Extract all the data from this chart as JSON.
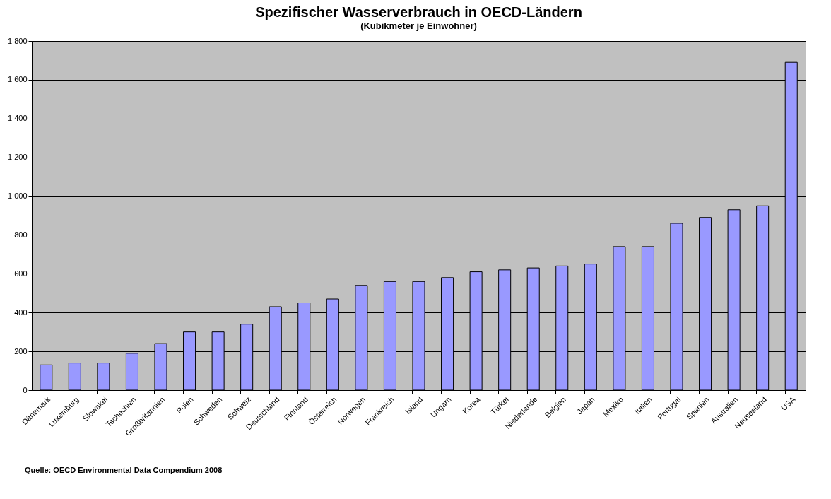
{
  "chart_data": {
    "type": "bar",
    "title": "Spezifischer Wasserverbrauch in OECD-Ländern",
    "subtitle": "(Kubikmeter je Einwohner)",
    "categories": [
      "Dänemark",
      "Luxemburg",
      "Slowakei",
      "Tschechien",
      "Großbritannien",
      "Polen",
      "Schweden",
      "Schweiz",
      "Deutschland",
      "Finnland",
      "Österreich",
      "Norwegen",
      "Frankreich",
      "Island",
      "Ungarn",
      "Korea",
      "Türkei",
      "Niederlande",
      "Belgien",
      "Japan",
      "Mexiko",
      "Italien",
      "Portugal",
      "Spanien",
      "Australien",
      "Neuseeland",
      "USA"
    ],
    "values": [
      130,
      140,
      140,
      190,
      240,
      300,
      300,
      340,
      430,
      450,
      470,
      540,
      560,
      560,
      580,
      610,
      620,
      630,
      640,
      650,
      740,
      740,
      860,
      890,
      930,
      950,
      1690
    ],
    "color": "#9999ff",
    "ylim": [
      0,
      1800
    ],
    "yticks": [
      0,
      200,
      400,
      600,
      800,
      {
        "value": 1000,
        "label": "1 000"
      },
      {
        "value": 1200,
        "label": "1 200"
      },
      {
        "value": 1400,
        "label": "1 400"
      },
      {
        "value": 1600,
        "label": "1 600"
      },
      {
        "value": 1800,
        "label": "1 800"
      }
    ],
    "grid": "y",
    "annotations": [
      "Quelle: OECD Environmental Data Compendium 2008"
    ]
  }
}
